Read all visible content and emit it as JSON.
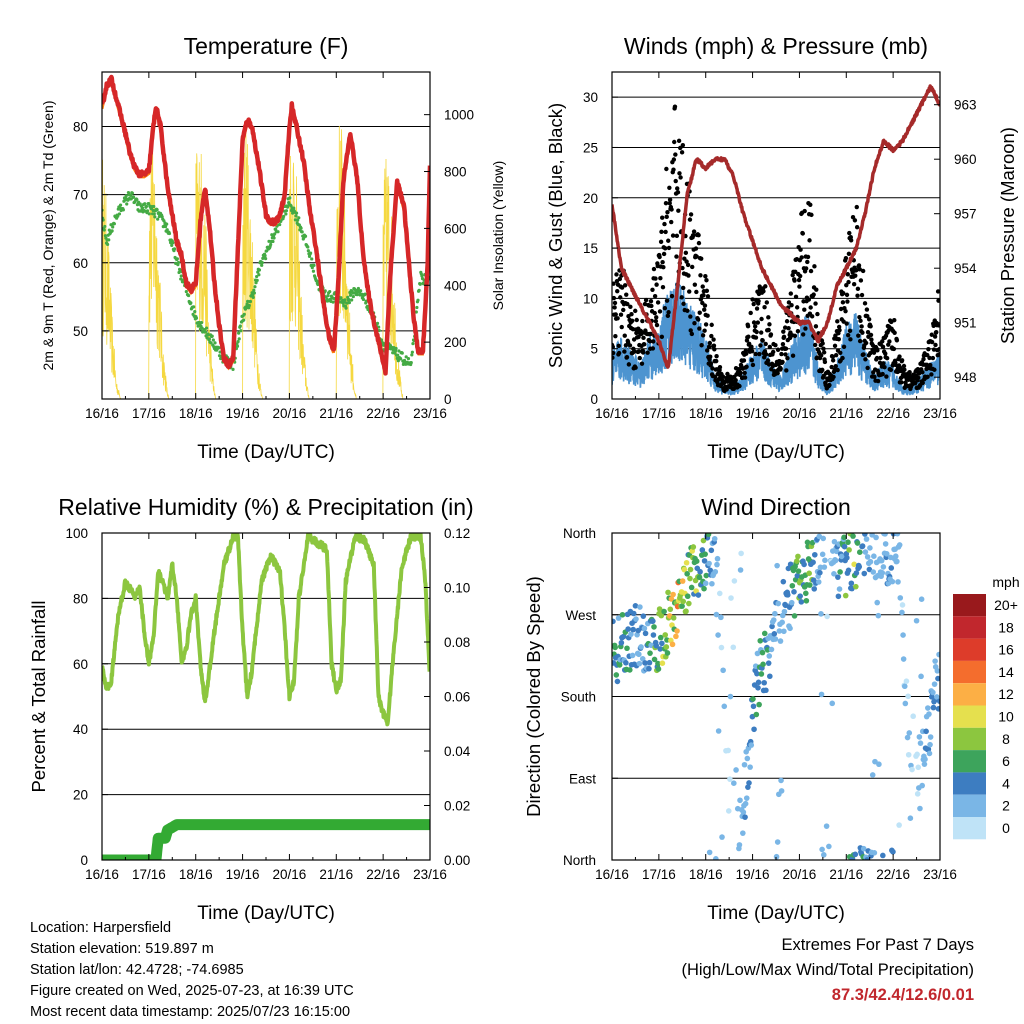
{
  "chart_data": [
    {
      "type": "line",
      "title": "Temperature (F)",
      "xlabel": "Time (Day/UTC)",
      "ylabel": "2m & 9m T (Red, Orange) & 2m Td (Green)",
      "ylabel_right": "Solar Insolation (Yellow)",
      "x_ticks": [
        "16/16",
        "17/16",
        "18/16",
        "19/16",
        "20/16",
        "21/16",
        "22/16",
        "23/16"
      ],
      "ylim": [
        40,
        88
      ],
      "y_ticks": [
        50,
        60,
        70,
        80
      ],
      "ylim_right": [
        0,
        1150
      ],
      "y_ticks_right": [
        0,
        200,
        400,
        600,
        800,
        1000
      ],
      "series": [
        {
          "name": "2m T",
          "color": "#d62728",
          "x": [
            0,
            0.1,
            0.2,
            0.35,
            0.5,
            0.6,
            0.7,
            0.8,
            0.9,
            1.0,
            1.08,
            1.15,
            1.25,
            1.4,
            1.5,
            1.6,
            1.7,
            1.8,
            1.9,
            2.0,
            2.1,
            2.2,
            2.3,
            2.4,
            2.5,
            2.6,
            2.7,
            2.8,
            2.9,
            3.0,
            3.1,
            3.2,
            3.35,
            3.5,
            3.6,
            3.7,
            3.8,
            3.9,
            4.0,
            4.05,
            4.15,
            4.3,
            4.45,
            4.55,
            4.65,
            4.75,
            4.85,
            4.95,
            5.05,
            5.15,
            5.3,
            5.45,
            5.55,
            5.65,
            5.75,
            5.85,
            5.95,
            6.05,
            6.15,
            6.3,
            6.45,
            6.55,
            6.65,
            6.75,
            6.85,
            6.95,
            7.0
          ],
          "y": [
            83,
            86,
            87,
            83,
            79,
            76,
            74,
            73,
            73,
            73.5,
            79,
            83,
            80,
            71,
            67,
            63,
            61,
            57,
            56,
            57,
            66,
            71,
            65,
            57,
            51,
            46,
            45,
            46,
            62,
            78,
            81,
            80,
            74,
            67,
            66,
            66,
            67,
            70,
            80,
            83,
            80,
            75,
            67,
            63,
            58,
            53,
            49,
            47,
            58,
            72,
            79,
            72,
            63,
            57,
            53,
            50,
            47,
            44,
            58,
            72,
            68,
            60,
            52,
            47,
            47,
            60,
            74
          ]
        },
        {
          "name": "9m T",
          "color": "#ff7f0e",
          "x": [
            0,
            0.5,
            1.0,
            1.5,
            2.0,
            2.5,
            3.0,
            3.5,
            4.0,
            4.5,
            5.0,
            5.5,
            6.0,
            6.5,
            7.0
          ],
          "y": [
            82,
            79,
            73,
            66,
            56,
            50,
            77,
            66,
            81,
            66,
            57,
            62,
            45,
            60,
            73
          ]
        },
        {
          "name": "2m Td",
          "color": "#44aa44",
          "x": [
            0,
            0.1,
            0.25,
            0.4,
            0.6,
            0.8,
            1.0,
            1.2,
            1.4,
            1.6,
            1.8,
            2.0,
            2.2,
            2.4,
            2.6,
            2.8,
            3.0,
            3.2,
            3.4,
            3.6,
            3.8,
            4.0,
            4.2,
            4.4,
            4.6,
            4.8,
            5.0,
            5.2,
            5.4,
            5.6,
            5.8,
            6.0,
            6.2,
            6.4,
            6.6,
            6.8,
            7.0
          ],
          "y": [
            67,
            63,
            66,
            68,
            70,
            68,
            68,
            67,
            65,
            60,
            56,
            52,
            50,
            48,
            46,
            45,
            52,
            55,
            60,
            63,
            66,
            69,
            66,
            62,
            57,
            55,
            55,
            54,
            56,
            55,
            52,
            48,
            47,
            46,
            45,
            58,
            57
          ]
        },
        {
          "name": "Solar Insolation",
          "color": "#f5d840",
          "axis": "right",
          "x": [
            0,
            0.1,
            0.2,
            0.3,
            0.4,
            0.5,
            0.6,
            0.7,
            0.8,
            0.9,
            1.0,
            1.1,
            1.2,
            1.3,
            1.4,
            1.5,
            1.6,
            1.7,
            1.8,
            1.9,
            2.0,
            2.1,
            2.2,
            2.3,
            2.4,
            2.5,
            2.6,
            2.7,
            2.8,
            2.9,
            3.0,
            3.1,
            3.2,
            3.3,
            3.4,
            3.5,
            3.6,
            3.7,
            3.8,
            3.9,
            4.0,
            4.1,
            4.2,
            4.3,
            4.4,
            4.5,
            4.6,
            4.7,
            4.8,
            4.9,
            5.0,
            5.1,
            5.2,
            5.3,
            5.4,
            5.5,
            5.6,
            5.7,
            5.8,
            5.9,
            6.0,
            6.1,
            6.2,
            6.3,
            6.4,
            6.5,
            6.6,
            6.7,
            6.8,
            6.9,
            7.0
          ],
          "y": [
            900,
            700,
            350,
            80,
            0,
            0,
            0,
            0,
            0,
            0,
            850,
            980,
            600,
            200,
            20,
            0,
            0,
            0,
            0,
            0,
            900,
            950,
            700,
            250,
            20,
            0,
            0,
            0,
            0,
            0,
            900,
            1000,
            650,
            230,
            20,
            0,
            0,
            0,
            0,
            0,
            950,
            1000,
            600,
            200,
            20,
            0,
            0,
            0,
            0,
            0,
            900,
            1050,
            700,
            250,
            20,
            0,
            0,
            0,
            0,
            0,
            800,
            900,
            600,
            200,
            20,
            0,
            0,
            0,
            0,
            0,
            900
          ]
        }
      ]
    },
    {
      "type": "scatter",
      "title": "Winds (mph) & Pressure (mb)",
      "xlabel": "Time (Day/UTC)",
      "ylabel": "Sonic Wind & Gust (Blue, Black)",
      "ylabel_right": "Station Pressure (Maroon)",
      "x_ticks": [
        "16/16",
        "17/16",
        "18/16",
        "19/16",
        "20/16",
        "21/16",
        "22/16",
        "23/16"
      ],
      "ylim": [
        0,
        32.5
      ],
      "y_ticks": [
        0,
        5,
        10,
        15,
        20,
        25,
        30
      ],
      "ylim_right": [
        946.8,
        964.8
      ],
      "y_ticks_right": [
        948,
        951,
        954,
        957,
        960,
        963
      ],
      "series": [
        {
          "name": "Sonic Wind",
          "color": "#4d94d0",
          "x": [
            0,
            0.2,
            0.4,
            0.6,
            0.8,
            1.0,
            1.2,
            1.4,
            1.6,
            1.8,
            2.0,
            2.2,
            2.4,
            2.6,
            2.8,
            3.0,
            3.2,
            3.4,
            3.6,
            3.8,
            4.0,
            4.2,
            4.4,
            4.6,
            4.8,
            5.0,
            5.2,
            5.4,
            5.6,
            5.8,
            6.0,
            6.2,
            6.4,
            6.6,
            6.8,
            7.0
          ],
          "y": [
            4,
            5,
            4,
            3,
            5,
            6,
            9,
            10,
            8,
            7,
            5,
            2,
            1,
            1,
            2,
            4,
            5,
            3,
            2,
            4,
            6,
            7,
            3,
            1,
            3,
            6,
            7,
            4,
            2,
            3,
            3,
            1,
            1,
            2,
            3,
            4
          ]
        },
        {
          "name": "Gust",
          "color": "#000000",
          "x": [
            0,
            0.2,
            0.4,
            0.6,
            0.8,
            1.0,
            1.2,
            1.4,
            1.6,
            1.8,
            2.0,
            2.2,
            2.4,
            2.6,
            2.8,
            3.0,
            3.2,
            3.4,
            3.6,
            3.8,
            4.0,
            4.2,
            4.4,
            4.6,
            4.8,
            5.0,
            5.2,
            5.4,
            5.6,
            5.8,
            6.0,
            6.2,
            6.4,
            6.6,
            6.8,
            7.0
          ],
          "y": [
            9,
            11,
            8,
            6,
            9,
            12,
            20,
            25,
            18,
            14,
            10,
            4,
            2,
            2,
            4,
            8,
            11,
            6,
            4,
            9,
            14,
            18,
            7,
            2,
            6,
            12,
            17,
            9,
            4,
            5,
            7,
            3,
            2,
            3,
            5,
            10
          ]
        },
        {
          "name": "Station Pressure",
          "color": "#a52a2a",
          "axis": "right",
          "x": [
            0,
            0.2,
            0.4,
            0.6,
            0.8,
            1.0,
            1.2,
            1.4,
            1.6,
            1.8,
            2.0,
            2.2,
            2.4,
            2.6,
            2.8,
            3.0,
            3.2,
            3.4,
            3.6,
            3.8,
            4.0,
            4.2,
            4.4,
            4.6,
            4.8,
            5.0,
            5.2,
            5.4,
            5.6,
            5.8,
            6.0,
            6.2,
            6.4,
            6.6,
            6.8,
            7.0
          ],
          "y": [
            957.5,
            954,
            953,
            952,
            951,
            950,
            948.5,
            953,
            958,
            960,
            959.5,
            960,
            960,
            959,
            957,
            955.5,
            954,
            953,
            952,
            951.5,
            951,
            951,
            950,
            951,
            953,
            954,
            955,
            957,
            959.5,
            961,
            960.5,
            961,
            962,
            963,
            964,
            963
          ]
        }
      ]
    },
    {
      "type": "line",
      "title": "Relative Humidity (%) & Precipitation (in)",
      "xlabel": "Time (Day/UTC)",
      "ylabel": "Percent & Total Rainfall",
      "x_ticks": [
        "16/16",
        "17/16",
        "18/16",
        "19/16",
        "20/16",
        "21/16",
        "22/16",
        "23/16"
      ],
      "ylim": [
        0,
        100
      ],
      "y_ticks": [
        0,
        20,
        40,
        60,
        80,
        100
      ],
      "ylim_right": [
        0,
        0.12
      ],
      "y_ticks_right": [
        "0.00",
        "0.02",
        "0.04",
        "0.06",
        "0.08",
        "0.10",
        "0.12"
      ],
      "series": [
        {
          "name": "Relative Humidity",
          "color": "#8cc63f",
          "x": [
            0,
            0.1,
            0.2,
            0.35,
            0.5,
            0.6,
            0.7,
            0.8,
            0.9,
            1.0,
            1.1,
            1.2,
            1.3,
            1.4,
            1.5,
            1.6,
            1.7,
            1.8,
            1.9,
            2.0,
            2.1,
            2.2,
            2.4,
            2.6,
            2.8,
            2.9,
            3.0,
            3.1,
            3.2,
            3.4,
            3.6,
            3.8,
            3.9,
            4.0,
            4.1,
            4.2,
            4.4,
            4.6,
            4.8,
            4.9,
            5.0,
            5.1,
            5.2,
            5.4,
            5.6,
            5.8,
            5.9,
            6.0,
            6.1,
            6.2,
            6.4,
            6.6,
            6.8,
            6.9,
            7.0
          ],
          "y": [
            60,
            52,
            55,
            75,
            85,
            83,
            80,
            84,
            70,
            60,
            68,
            88,
            85,
            80,
            90,
            80,
            60,
            65,
            75,
            80,
            60,
            48,
            70,
            90,
            99,
            99,
            70,
            50,
            58,
            85,
            93,
            88,
            70,
            50,
            55,
            80,
            99,
            97,
            95,
            60,
            52,
            55,
            85,
            99,
            98,
            90,
            50,
            45,
            42,
            60,
            90,
            99,
            99,
            85,
            55
          ]
        },
        {
          "name": "Total Rainfall",
          "color": "#33aa33",
          "axis": "right",
          "x": [
            0,
            0.5,
            1.0,
            1.15,
            1.2,
            1.35,
            1.4,
            1.6,
            2.0,
            3.0,
            4.0,
            5.0,
            6.0,
            7.0
          ],
          "y": [
            0.0,
            0.0,
            0.0,
            0.0,
            0.008,
            0.008,
            0.011,
            0.013,
            0.013,
            0.013,
            0.013,
            0.013,
            0.013,
            0.013
          ]
        }
      ]
    },
    {
      "type": "scatter",
      "title": "Wind Direction",
      "xlabel": "Time (Day/UTC)",
      "ylabel": "Direction (Colored By Speed)",
      "x_ticks": [
        "16/16",
        "17/16",
        "18/16",
        "19/16",
        "20/16",
        "21/16",
        "22/16",
        "23/16"
      ],
      "ylim": [
        0,
        360
      ],
      "y_ticks": [
        "North",
        "East",
        "South",
        "West",
        "North"
      ],
      "legend": {
        "title": "mph",
        "labels": [
          "20+",
          "18",
          "16",
          "14",
          "12",
          "10",
          "8",
          "6",
          "4",
          "2",
          "0"
        ],
        "colors": [
          "#99191c",
          "#c1272d",
          "#dd3c2a",
          "#f46d2d",
          "#fcaf45",
          "#e5e04e",
          "#8cc63f",
          "#3da45c",
          "#3d7dc1",
          "#7ab6e6",
          "#bfe3f7"
        ]
      },
      "series": [
        {
          "name": "Direction",
          "x": [
            0.1,
            0.3,
            0.5,
            0.8,
            1.0,
            1.2,
            1.4,
            1.6,
            1.8,
            2.0,
            2.2,
            2.5,
            2.8,
            3.1,
            3.3,
            3.6,
            3.9,
            4.2,
            4.4,
            4.8,
            5.0,
            5.3,
            5.5,
            5.8,
            6.1,
            6.4,
            6.7,
            6.9
          ],
          "y": [
            230,
            240,
            250,
            235,
            245,
            260,
            280,
            300,
            320,
            330,
            340,
            100,
            60,
            200,
            220,
            270,
            300,
            320,
            330,
            315,
            325,
            340,
            350,
            330,
            340,
            90,
            120,
            200
          ]
        }
      ]
    }
  ],
  "info": {
    "location": "Location: Harpersfield",
    "elevation": "Station elevation: 519.897 m",
    "latlon": "Station lat/lon: 42.4728; -74.6985",
    "created": "Figure created on Wed, 2025-07-23, at 16:39 UTC",
    "recent": "Most recent data timestamp: 2025/07/23 16:15:00"
  },
  "extremes": {
    "title": "Extremes For Past 7 Days",
    "subtitle": "(High/Low/Max Wind/Total Precipitation)",
    "values": "87.3/42.4/12.6/0.01"
  }
}
